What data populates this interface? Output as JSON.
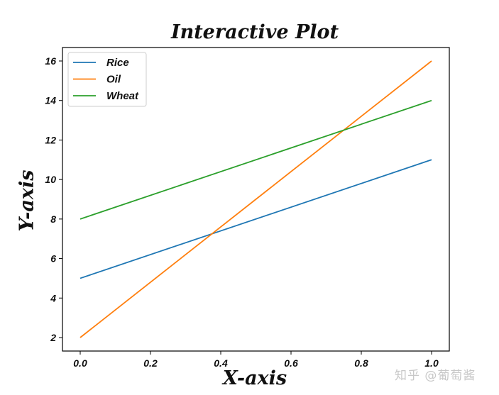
{
  "chart_data": {
    "type": "line",
    "title": "Interactive Plot",
    "xlabel": "X-axis",
    "ylabel": "Y-axis",
    "x": [
      0.0,
      1.0
    ],
    "series": [
      {
        "name": "Rice",
        "values": [
          5,
          11
        ],
        "color": "#1f77b4"
      },
      {
        "name": "Oil",
        "values": [
          2,
          16
        ],
        "color": "#ff7f0e"
      },
      {
        "name": "Wheat",
        "values": [
          8,
          14
        ],
        "color": "#2ca02c"
      }
    ],
    "xticks": [
      "0.0",
      "0.2",
      "0.4",
      "0.6",
      "0.8",
      "1.0"
    ],
    "yticks": [
      "2",
      "4",
      "6",
      "8",
      "10",
      "12",
      "14",
      "16"
    ],
    "xlim": [
      -0.05,
      1.05
    ],
    "ylim": [
      1.3,
      16.7
    ],
    "grid": false,
    "legend_position": "upper left"
  },
  "watermark": "知乎 @葡萄酱"
}
